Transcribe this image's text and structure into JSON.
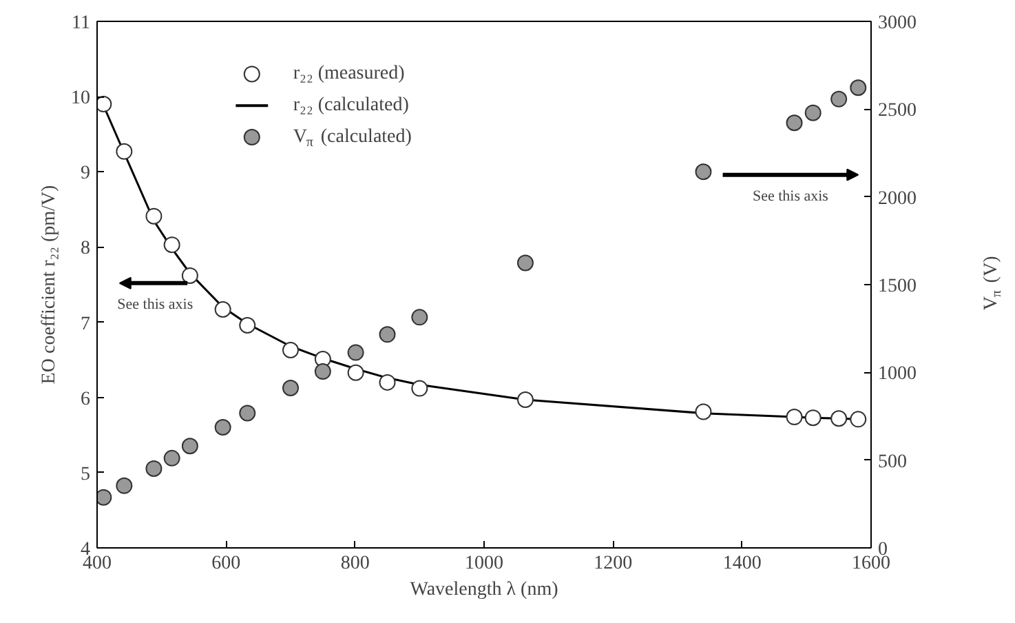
{
  "chart_data": {
    "type": "scatter",
    "xlabel": "Wavelength λ (nm)",
    "ylabel": "EO coefficient r₂₂ (pm/V)",
    "y2label": "V$_{π}$ (V)",
    "xlim": [
      400,
      1600
    ],
    "xticks": [
      400,
      600,
      800,
      1000,
      1200,
      1400,
      1600
    ],
    "ylim": [
      4,
      11
    ],
    "yticks": [
      4,
      5,
      6,
      7,
      8,
      9,
      10,
      11
    ],
    "y2lim": [
      0,
      3000
    ],
    "y2ticks": [
      0,
      500,
      1000,
      1500,
      2000,
      2500,
      3000
    ],
    "legend": "top",
    "grid": false,
    "annotations": [
      "See this axis",
      "See this axis"
    ],
    "series": [
      {
        "name": "r₂₂ (measured)",
        "marker": "circle",
        "color": "#ffffff",
        "x": [
          410,
          442,
          488,
          516,
          544,
          595,
          633,
          700,
          750,
          801,
          850,
          900,
          1064,
          1340,
          1481,
          1510,
          1550,
          1580
        ],
        "values": [
          9.9,
          9.27,
          8.41,
          8.03,
          7.62,
          7.17,
          6.96,
          6.63,
          6.51,
          6.33,
          6.2,
          6.12,
          5.97,
          5.81,
          5.74,
          5.73,
          5.72,
          5.71
        ]
      },
      {
        "name": "r₂₂ (calculated)",
        "type": "line",
        "line_style": "solid",
        "color": "#000000",
        "x": [
          410,
          442,
          488,
          516,
          544,
          595,
          633,
          700,
          750,
          801,
          850,
          900,
          1064,
          1340,
          1481,
          1510,
          1550,
          1580
        ],
        "values": [
          9.88,
          9.25,
          8.35,
          7.98,
          7.65,
          7.2,
          6.98,
          6.68,
          6.52,
          6.38,
          6.26,
          6.17,
          5.97,
          5.79,
          5.74,
          5.73,
          5.72,
          5.71
        ]
      },
      {
        "name": "V$_{π}$ (calculated)",
        "marker": "circle",
        "color": "#999999",
        "axis": "y2",
        "x": [
          410,
          442,
          488,
          516,
          544,
          595,
          633,
          700,
          750,
          801,
          850,
          900,
          1064,
          1340,
          1481,
          1510,
          1550,
          1580
        ],
        "values": [
          288,
          354,
          452,
          511,
          580,
          687,
          768,
          911,
          1005,
          1113,
          1216,
          1314,
          1624,
          2143,
          2422,
          2479,
          2557,
          2622
        ]
      }
    ]
  }
}
